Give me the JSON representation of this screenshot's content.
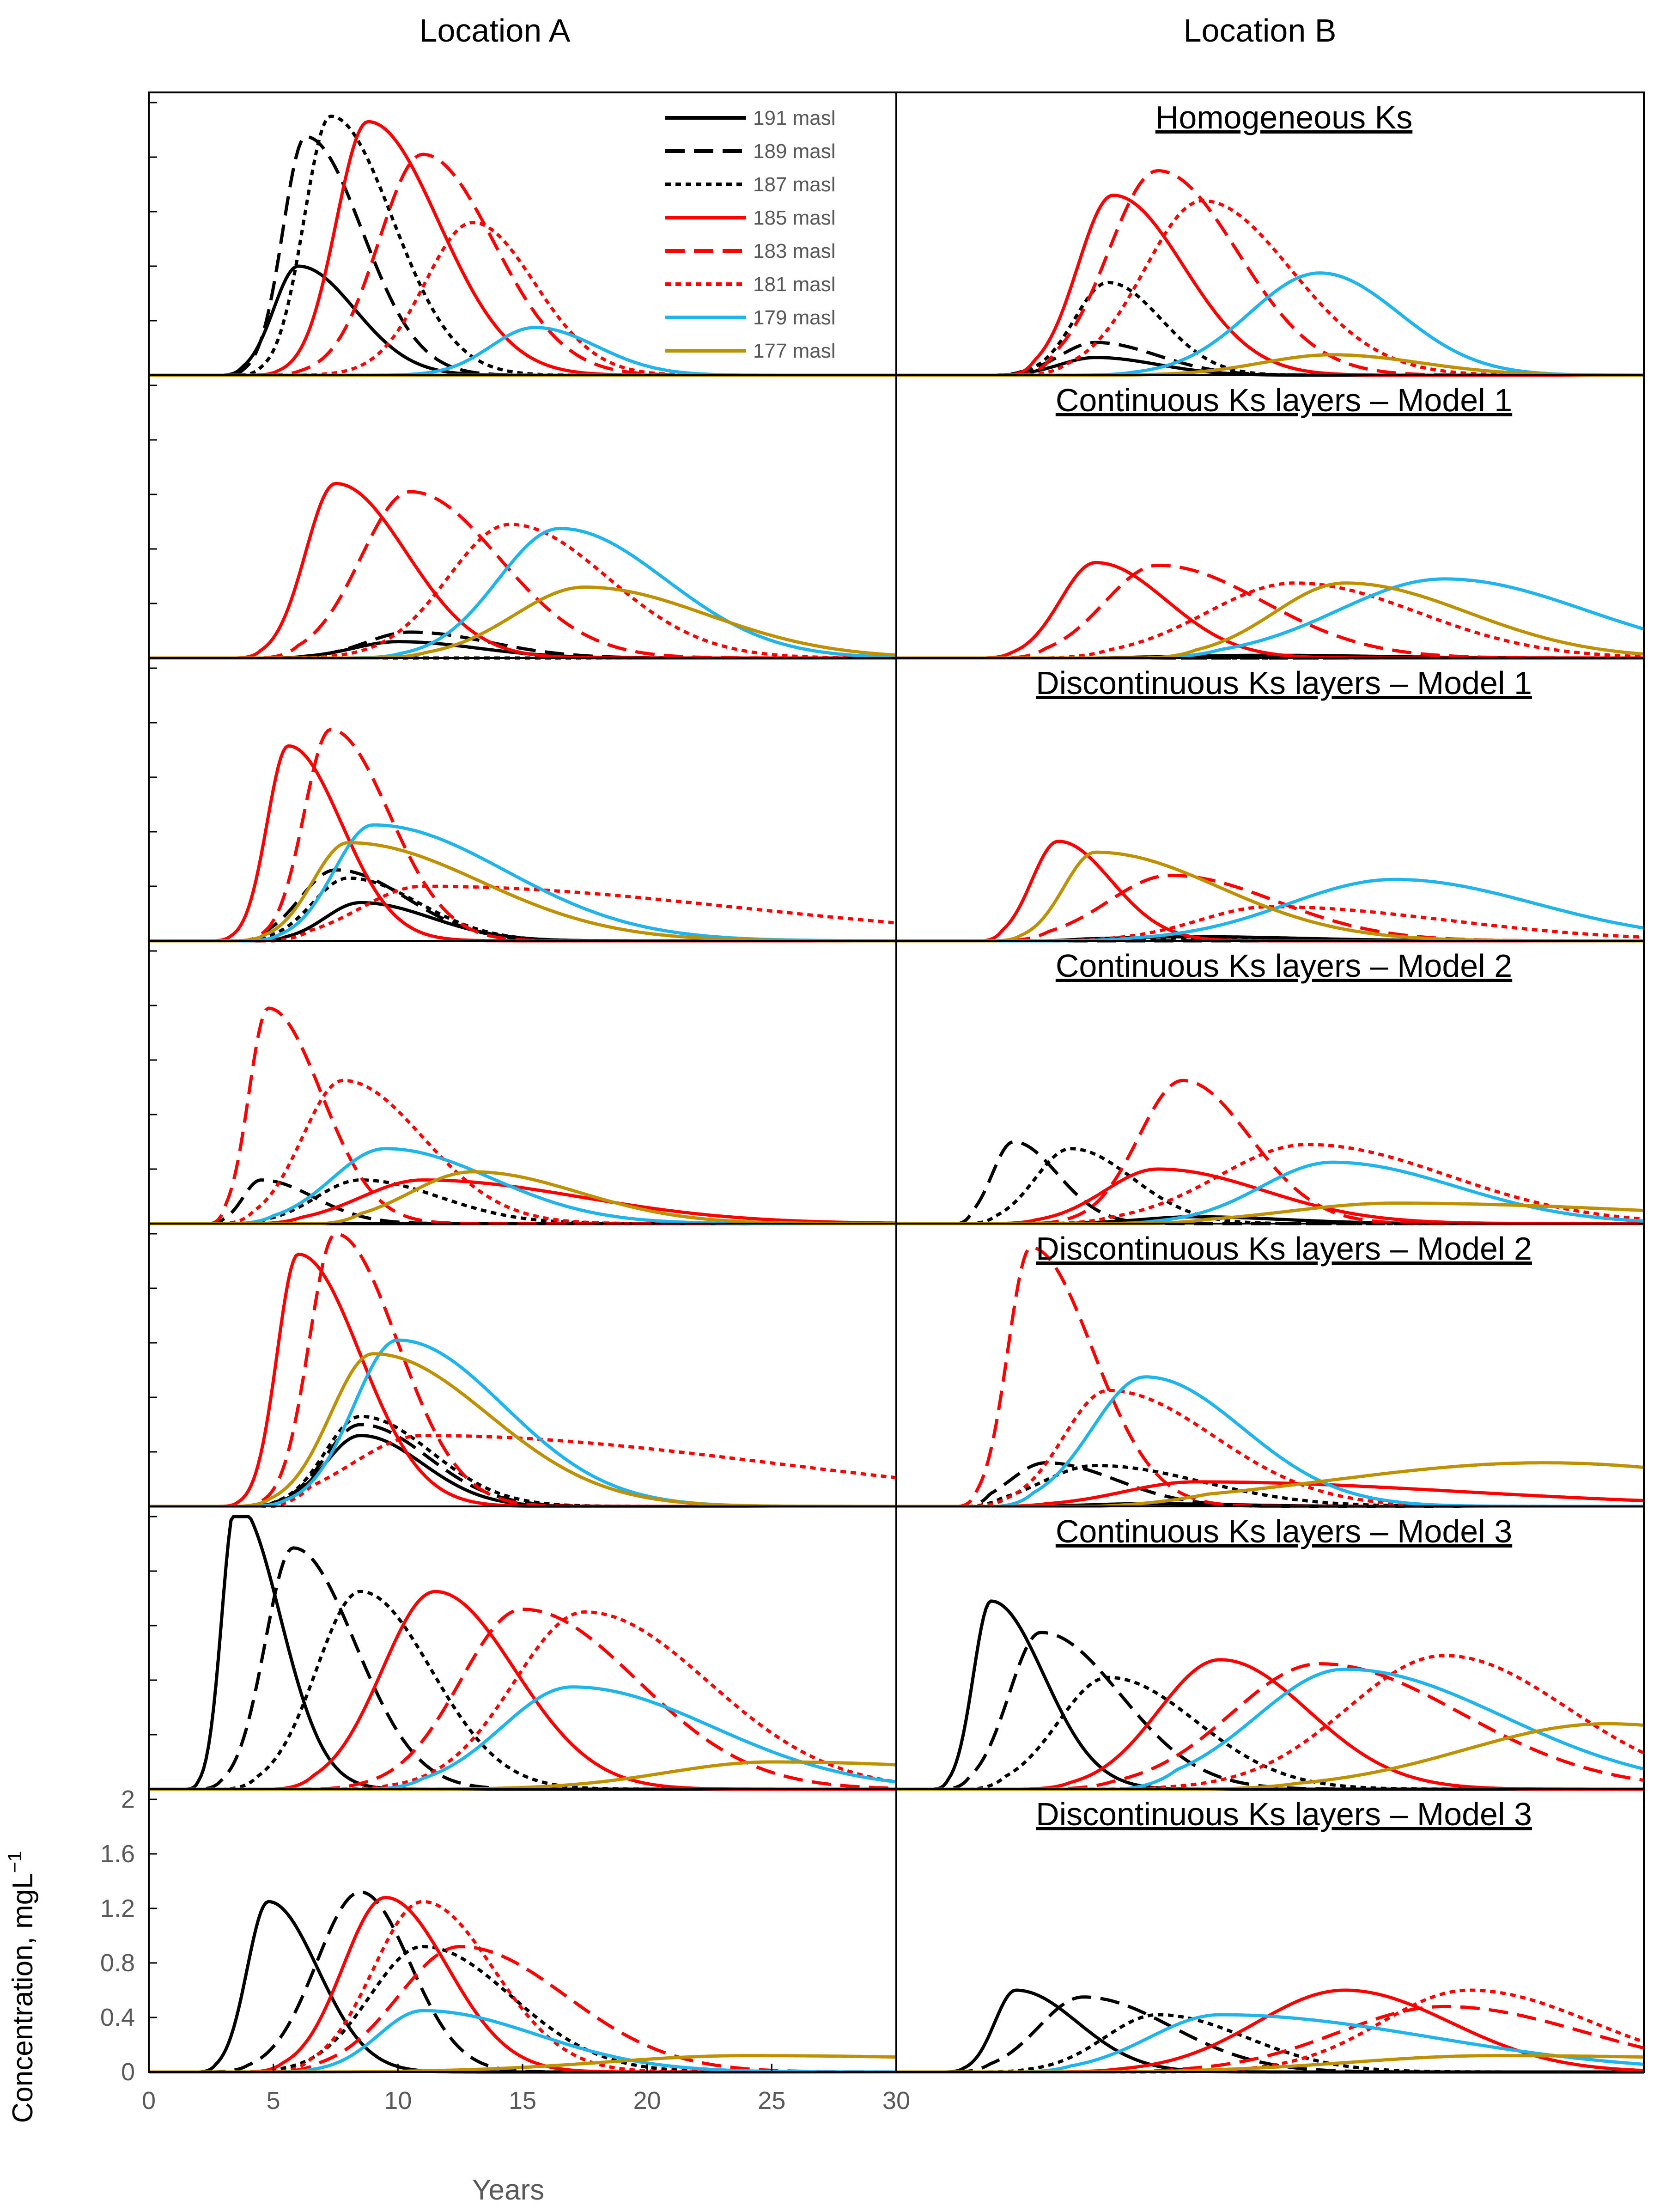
{
  "chart_data": {
    "type": "line",
    "column_titles": [
      "Location A",
      "Location B"
    ],
    "xlabel": "Years",
    "ylabel": "Concentration, mgL",
    "ylabel_superscript": "−1",
    "xlim": [
      0,
      30
    ],
    "ylim": [
      0,
      2
    ],
    "x_ticks": [
      "0",
      "5",
      "10",
      "15",
      "20",
      "25",
      "30"
    ],
    "y_ticks": [
      "0",
      "0.4",
      "0.8",
      "1.2",
      "1.6",
      "2"
    ],
    "legend": [
      {
        "label": "191 masl",
        "color": "#000000",
        "style": "solid"
      },
      {
        "label": "189 masl",
        "color": "#000000",
        "style": "longdash"
      },
      {
        "label": "187 masl",
        "color": "#000000",
        "style": "dotted"
      },
      {
        "label": "185 masl",
        "color": "#ff0000",
        "style": "solid"
      },
      {
        "label": "183 masl",
        "color": "#ff0000",
        "style": "longdash"
      },
      {
        "label": "181 masl",
        "color": "#ff0000",
        "style": "dotted"
      },
      {
        "label": "179 masl",
        "color": "#1fb4ec",
        "style": "solid"
      },
      {
        "label": "177 masl",
        "color": "#bf9000",
        "style": "solid"
      }
    ],
    "rows": [
      {
        "title": "Homogeneous Ks",
        "A": [
          {
            "peak": 0.8,
            "tpk": 6.0,
            "w1": 1.4,
            "w2": 3.2,
            "start": 3.0
          },
          {
            "peak": 1.75,
            "tpk": 6.3,
            "w1": 1.3,
            "w2": 3.2,
            "start": 3.0
          },
          {
            "peak": 1.9,
            "tpk": 7.3,
            "w1": 1.5,
            "w2": 3.5,
            "start": 3.5
          },
          {
            "peak": 1.86,
            "tpk": 8.8,
            "w1": 1.8,
            "w2": 4.0,
            "start": 4.0
          },
          {
            "peak": 1.62,
            "tpk": 11.0,
            "w1": 2.5,
            "w2": 4.0,
            "start": 4.5
          },
          {
            "peak": 1.12,
            "tpk": 13.0,
            "w1": 2.7,
            "w2": 3.5,
            "start": 5.0
          },
          {
            "peak": 0.35,
            "tpk": 15.5,
            "w1": 2.5,
            "w2": 3.5,
            "start": 8.0
          },
          {
            "peak": 0.0,
            "tpk": 15.0,
            "w1": 2.0,
            "w2": 3.0,
            "start": 10.0
          }
        ],
        "B": [
          {
            "peak": 0.13,
            "tpk": 8.0,
            "w1": 2.0,
            "w2": 3.5,
            "start": 4.0
          },
          {
            "peak": 0.24,
            "tpk": 8.0,
            "w1": 2.0,
            "w2": 3.5,
            "start": 4.0
          },
          {
            "peak": 0.68,
            "tpk": 8.5,
            "w1": 1.9,
            "w2": 3.0,
            "start": 4.5
          },
          {
            "peak": 1.32,
            "tpk": 8.7,
            "w1": 2.0,
            "w2": 4.0,
            "start": 4.5
          },
          {
            "peak": 1.5,
            "tpk": 10.5,
            "w1": 2.8,
            "w2": 4.5,
            "start": 5.0
          },
          {
            "peak": 1.28,
            "tpk": 12.3,
            "w1": 3.3,
            "w2": 5.0,
            "start": 5.0
          },
          {
            "peak": 0.75,
            "tpk": 17.0,
            "w1": 4.0,
            "w2": 4.5,
            "start": 7.0
          },
          {
            "peak": 0.15,
            "tpk": 17.5,
            "w1": 4.0,
            "w2": 5.0,
            "start": 8.0
          }
        ]
      },
      {
        "title": "Continuous Ks layers – Model 1",
        "A": [
          {
            "peak": 0.12,
            "tpk": 10.0,
            "w1": 2.5,
            "w2": 4.5,
            "start": 5.0
          },
          {
            "peak": 0.19,
            "tpk": 10.5,
            "w1": 2.5,
            "w2": 4.5,
            "start": 5.0
          },
          {
            "peak": 0.0,
            "tpk": 10.0,
            "w1": 2.0,
            "w2": 3.0,
            "start": 5.0
          },
          {
            "peak": 1.28,
            "tpk": 7.5,
            "w1": 1.7,
            "w2": 4.0,
            "start": 3.5
          },
          {
            "peak": 1.22,
            "tpk": 10.5,
            "w1": 2.8,
            "w2": 5.0,
            "start": 4.5
          },
          {
            "peak": 0.98,
            "tpk": 14.5,
            "w1": 3.5,
            "w2": 5.5,
            "start": 5.0
          },
          {
            "peak": 0.95,
            "tpk": 16.5,
            "w1": 3.5,
            "w2": 6.0,
            "start": 8.0
          },
          {
            "peak": 0.52,
            "tpk": 17.5,
            "w1": 4.0,
            "w2": 7.0,
            "start": 9.0
          }
        ],
        "B": [
          {
            "peak": 0.02,
            "tpk": 15.0,
            "w1": 5.0,
            "w2": 6.0,
            "start": 8.0
          },
          {
            "peak": 0.0,
            "tpk": 15.0,
            "w1": 5.0,
            "w2": 6.0,
            "start": 8.0
          },
          {
            "peak": 0.0,
            "tpk": 15.0,
            "w1": 5.0,
            "w2": 6.0,
            "start": 8.0
          },
          {
            "peak": 0.7,
            "tpk": 8.0,
            "w1": 2.0,
            "w2": 4.0,
            "start": 3.5
          },
          {
            "peak": 0.68,
            "tpk": 10.5,
            "w1": 3.0,
            "w2": 6.0,
            "start": 4.5
          },
          {
            "peak": 0.55,
            "tpk": 16.0,
            "w1": 5.0,
            "w2": 7.0,
            "start": 6.0
          },
          {
            "peak": 0.58,
            "tpk": 22.0,
            "w1": 6.0,
            "w2": 8.0,
            "start": 10.0
          },
          {
            "peak": 0.55,
            "tpk": 18.0,
            "w1": 4.0,
            "w2": 7.0,
            "start": 10.0
          }
        ]
      },
      {
        "title": "Discontinuous Ks layers – Model 1",
        "A": [
          {
            "peak": 0.28,
            "tpk": 8.5,
            "w1": 2.0,
            "w2": 4.0,
            "start": 4.5
          },
          {
            "peak": 0.52,
            "tpk": 7.5,
            "w1": 2.0,
            "w2": 4.0,
            "start": 4.0
          },
          {
            "peak": 0.46,
            "tpk": 8.0,
            "w1": 2.0,
            "w2": 4.0,
            "start": 4.0
          },
          {
            "peak": 1.43,
            "tpk": 5.6,
            "w1": 1.2,
            "w2": 3.0,
            "start": 2.5
          },
          {
            "peak": 1.55,
            "tpk": 7.3,
            "w1": 1.5,
            "w2": 3.3,
            "start": 3.5
          },
          {
            "peak": 0.4,
            "tpk": 11.0,
            "w1": 3.5,
            "w2": 18.0,
            "start": 5.0
          },
          {
            "peak": 0.85,
            "tpk": 9.0,
            "w1": 2.2,
            "w2": 7.5,
            "start": 4.0
          },
          {
            "peak": 0.72,
            "tpk": 8.0,
            "w1": 2.0,
            "w2": 7.5,
            "start": 3.5
          }
        ],
        "B": [
          {
            "peak": 0.03,
            "tpk": 12.0,
            "w1": 5.0,
            "w2": 6.0,
            "start": 6.0
          },
          {
            "peak": 0.0,
            "tpk": 12.0,
            "w1": 5.0,
            "w2": 6.0,
            "start": 6.0
          },
          {
            "peak": 0.02,
            "tpk": 12.0,
            "w1": 5.0,
            "w2": 6.0,
            "start": 6.0
          },
          {
            "peak": 0.73,
            "tpk": 6.5,
            "w1": 1.5,
            "w2": 3.0,
            "start": 3.5
          },
          {
            "peak": 0.48,
            "tpk": 11.0,
            "w1": 3.5,
            "w2": 6.0,
            "start": 4.5
          },
          {
            "peak": 0.25,
            "tpk": 15.0,
            "w1": 4.0,
            "w2": 10.0,
            "start": 6.0
          },
          {
            "peak": 0.45,
            "tpk": 20.0,
            "w1": 6.0,
            "w2": 8.0,
            "start": 6.0
          },
          {
            "peak": 0.65,
            "tpk": 8.0,
            "w1": 1.8,
            "w2": 7.0,
            "start": 4.0
          }
        ]
      },
      {
        "title": "Continuous Ks layers – Model 2",
        "A": [
          {
            "peak": 0.0,
            "tpk": 10.0,
            "w1": 3.0,
            "w2": 5.0,
            "start": 5.0
          },
          {
            "peak": 0.32,
            "tpk": 4.5,
            "w1": 1.0,
            "w2": 3.0,
            "start": 2.5
          },
          {
            "peak": 0.32,
            "tpk": 8.5,
            "w1": 2.5,
            "w2": 4.5,
            "start": 3.5
          },
          {
            "peak": 0.32,
            "tpk": 11.0,
            "w1": 3.5,
            "w2": 9.0,
            "start": 4.5
          },
          {
            "peak": 1.58,
            "tpk": 4.8,
            "w1": 1.1,
            "w2": 3.0,
            "start": 2.5
          },
          {
            "peak": 1.05,
            "tpk": 7.8,
            "w1": 2.3,
            "w2": 4.5,
            "start": 3.0
          },
          {
            "peak": 0.55,
            "tpk": 9.5,
            "w1": 3.0,
            "w2": 6.0,
            "start": 3.5
          },
          {
            "peak": 0.38,
            "tpk": 13.0,
            "w1": 3.5,
            "w2": 6.0,
            "start": 7.0
          }
        ],
        "B": [
          {
            "peak": 0.05,
            "tpk": 12.0,
            "w1": 3.0,
            "w2": 5.0,
            "start": 6.0
          },
          {
            "peak": 0.6,
            "tpk": 4.7,
            "w1": 1.2,
            "w2": 2.5,
            "start": 2.5
          },
          {
            "peak": 0.55,
            "tpk": 7.0,
            "w1": 2.0,
            "w2": 3.5,
            "start": 3.0
          },
          {
            "peak": 0.4,
            "tpk": 10.5,
            "w1": 3.0,
            "w2": 6.0,
            "start": 4.0
          },
          {
            "peak": 1.05,
            "tpk": 11.5,
            "w1": 2.5,
            "w2": 3.8,
            "start": 5.0
          },
          {
            "peak": 0.58,
            "tpk": 16.5,
            "w1": 5.0,
            "w2": 8.0,
            "start": 6.0
          },
          {
            "peak": 0.45,
            "tpk": 17.5,
            "w1": 4.0,
            "w2": 7.0,
            "start": 8.0
          },
          {
            "peak": 0.15,
            "tpk": 20.0,
            "w1": 6.0,
            "w2": 15.0,
            "start": 10.0
          }
        ]
      },
      {
        "title": "Discontinuous Ks layers – Model 2",
        "A": [
          {
            "peak": 0.52,
            "tpk": 8.5,
            "w1": 2.0,
            "w2": 3.5,
            "start": 4.0
          },
          {
            "peak": 0.6,
            "tpk": 8.5,
            "w1": 2.0,
            "w2": 3.8,
            "start": 4.0
          },
          {
            "peak": 0.66,
            "tpk": 8.5,
            "w1": 2.0,
            "w2": 4.0,
            "start": 4.0
          },
          {
            "peak": 1.85,
            "tpk": 6.0,
            "w1": 1.2,
            "w2": 3.5,
            "start": 2.8
          },
          {
            "peak": 2.0,
            "tpk": 7.5,
            "w1": 1.5,
            "w2": 3.5,
            "start": 3.5
          },
          {
            "peak": 0.52,
            "tpk": 11.0,
            "w1": 4.0,
            "w2": 20.0,
            "start": 5.0
          },
          {
            "peak": 1.22,
            "tpk": 10.0,
            "w1": 2.5,
            "w2": 6.0,
            "start": 4.0
          },
          {
            "peak": 1.12,
            "tpk": 9.0,
            "w1": 2.4,
            "w2": 6.5,
            "start": 3.5
          }
        ],
        "B": [
          {
            "peak": 0.02,
            "tpk": 10.0,
            "w1": 3.0,
            "w2": 5.0,
            "start": 4.0
          },
          {
            "peak": 0.32,
            "tpk": 6.0,
            "w1": 2.0,
            "w2": 4.0,
            "start": 3.0
          },
          {
            "peak": 0.3,
            "tpk": 8.0,
            "w1": 3.0,
            "w2": 6.0,
            "start": 3.0
          },
          {
            "peak": 0.18,
            "tpk": 12.0,
            "w1": 4.0,
            "w2": 15.0,
            "start": 4.0
          },
          {
            "peak": 1.9,
            "tpk": 5.4,
            "w1": 1.3,
            "w2": 3.5,
            "start": 2.5
          },
          {
            "peak": 0.85,
            "tpk": 8.5,
            "w1": 2.5,
            "w2": 6.0,
            "start": 3.0
          },
          {
            "peak": 0.95,
            "tpk": 10.0,
            "w1": 3.0,
            "w2": 5.5,
            "start": 4.0
          },
          {
            "peak": 0.32,
            "tpk": 26.0,
            "w1": 12.0,
            "w2": 12.0,
            "start": 8.0
          }
        ]
      },
      {
        "title": "Continuous Ks layers – Model 3",
        "A": [
          {
            "peak": 2.1,
            "tpk": 3.5,
            "w1": 0.8,
            "w2": 2.5,
            "start": 1.5
          },
          {
            "peak": 1.77,
            "tpk": 5.8,
            "w1": 1.6,
            "w2": 3.5,
            "start": 2.0
          },
          {
            "peak": 1.45,
            "tpk": 8.5,
            "w1": 2.5,
            "w2": 4.0,
            "start": 3.0
          },
          {
            "peak": 1.45,
            "tpk": 11.5,
            "w1": 3.0,
            "w2": 4.5,
            "start": 5.0
          },
          {
            "peak": 1.32,
            "tpk": 15.0,
            "w1": 3.5,
            "w2": 6.5,
            "start": 6.0
          },
          {
            "peak": 1.3,
            "tpk": 17.5,
            "w1": 4.0,
            "w2": 7.0,
            "start": 7.0
          },
          {
            "peak": 0.75,
            "tpk": 17.0,
            "w1": 4.0,
            "w2": 8.0,
            "start": 9.0
          },
          {
            "peak": 0.2,
            "tpk": 25.0,
            "w1": 6.0,
            "w2": 15.0,
            "start": 10.0
          }
        ],
        "B": [
          {
            "peak": 1.38,
            "tpk": 3.8,
            "w1": 1.0,
            "w2": 3.0,
            "start": 1.5
          },
          {
            "peak": 1.15,
            "tpk": 5.8,
            "w1": 1.8,
            "w2": 4.5,
            "start": 2.0
          },
          {
            "peak": 0.82,
            "tpk": 8.5,
            "w1": 2.8,
            "w2": 5.0,
            "start": 3.0
          },
          {
            "peak": 0.95,
            "tpk": 13.0,
            "w1": 3.5,
            "w2": 5.0,
            "start": 5.0
          },
          {
            "peak": 0.92,
            "tpk": 17.0,
            "w1": 5.0,
            "w2": 8.0,
            "start": 6.0
          },
          {
            "peak": 0.98,
            "tpk": 22.0,
            "w1": 5.5,
            "w2": 7.0,
            "start": 7.0
          },
          {
            "peak": 0.88,
            "tpk": 18.0,
            "w1": 5.0,
            "w2": 9.0,
            "start": 9.0
          },
          {
            "peak": 0.48,
            "tpk": 28.5,
            "w1": 8.0,
            "w2": 10.0,
            "start": 12.0
          }
        ]
      },
      {
        "title": "Discontinuous Ks layers – Model 3",
        "A": [
          {
            "peak": 1.25,
            "tpk": 4.8,
            "w1": 1.2,
            "w2": 2.8,
            "start": 2.0
          },
          {
            "peak": 1.32,
            "tpk": 8.5,
            "w1": 2.5,
            "w2": 2.8,
            "start": 2.5
          },
          {
            "peak": 0.92,
            "tpk": 11.0,
            "w1": 3.0,
            "w2": 5.0,
            "start": 3.5
          },
          {
            "peak": 1.28,
            "tpk": 9.5,
            "w1": 2.4,
            "w2": 3.5,
            "start": 4.0
          },
          {
            "peak": 0.92,
            "tpk": 12.5,
            "w1": 3.5,
            "w2": 6.0,
            "start": 5.0
          },
          {
            "peak": 1.25,
            "tpk": 11.0,
            "w1": 2.8,
            "w2": 4.0,
            "start": 5.0
          },
          {
            "peak": 0.45,
            "tpk": 11.0,
            "w1": 2.5,
            "w2": 6.5,
            "start": 5.0
          },
          {
            "peak": 0.12,
            "tpk": 24.0,
            "w1": 8.0,
            "w2": 20.0,
            "start": 6.0
          }
        ],
        "B": [
          {
            "peak": 0.6,
            "tpk": 4.8,
            "w1": 1.2,
            "w2": 3.5,
            "start": 2.0
          },
          {
            "peak": 0.55,
            "tpk": 7.5,
            "w1": 2.5,
            "w2": 5.0,
            "start": 2.5
          },
          {
            "peak": 0.42,
            "tpk": 10.5,
            "w1": 3.0,
            "w2": 5.0,
            "start": 3.5
          },
          {
            "peak": 0.6,
            "tpk": 18.0,
            "w1": 5.0,
            "w2": 6.0,
            "start": 6.0
          },
          {
            "peak": 0.48,
            "tpk": 22.0,
            "w1": 6.0,
            "w2": 8.0,
            "start": 8.0
          },
          {
            "peak": 0.6,
            "tpk": 23.0,
            "w1": 5.0,
            "w2": 7.0,
            "start": 9.0
          },
          {
            "peak": 0.42,
            "tpk": 13.0,
            "w1": 4.0,
            "w2": 12.0,
            "start": 5.0
          },
          {
            "peak": 0.12,
            "tpk": 24.0,
            "w1": 8.0,
            "w2": 20.0,
            "start": 8.0
          }
        ]
      }
    ]
  }
}
